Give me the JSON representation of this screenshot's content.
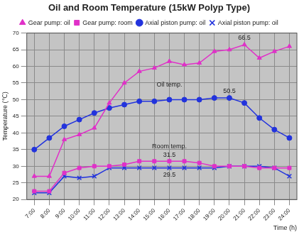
{
  "chart_data": {
    "type": "line",
    "title": "Oil and Room Temperature (15kW Polyp Type)",
    "xlabel": "Time (h)",
    "ylabel": "Temperature (℃)",
    "categories": [
      "7:00",
      "8:00",
      "9:00",
      "10:00",
      "11:00",
      "12:00",
      "13:00",
      "14:00",
      "15:00",
      "16:00",
      "17:00",
      "18:00",
      "19:00",
      "20:00",
      "21:00",
      "22:00",
      "23:00",
      "24:00"
    ],
    "series": [
      {
        "name": "Gear pump: oil",
        "color": "#e030c8",
        "marker": "triangle",
        "line_style": "solid",
        "values": [
          27,
          27,
          38,
          39.5,
          41.5,
          49,
          55,
          58.5,
          59.5,
          61.5,
          60.5,
          61,
          64.5,
          65,
          66.5,
          62.5,
          64.5,
          66
        ]
      },
      {
        "name": "Gear pump: room",
        "color": "#e030c8",
        "marker": "square",
        "line_style": "solid",
        "values": [
          22.5,
          22.5,
          28,
          29.5,
          30,
          30,
          30.5,
          31.5,
          31.5,
          31.5,
          31.5,
          31,
          30,
          30,
          30,
          29.5,
          29.5,
          29.5
        ]
      },
      {
        "name": "Axial piston pump: oil",
        "color": "#2233dd",
        "marker": "circle",
        "line_style": "solid",
        "values": [
          35,
          38.5,
          42,
          44,
          46,
          47.5,
          48.5,
          49.5,
          49.5,
          50,
          50,
          50,
          50.5,
          50.5,
          49,
          44.5,
          41,
          38.5
        ]
      },
      {
        "name": "Axial piston pump: oil",
        "color": "#2233dd",
        "marker": "x",
        "line_style": "solid",
        "values": [
          22,
          22,
          27,
          26.5,
          27,
          29.5,
          29.5,
          29.5,
          29.5,
          29.5,
          29.5,
          29.5,
          29.5,
          30,
          30,
          30,
          29.5,
          27
        ]
      }
    ],
    "annotations": [
      {
        "text": "Oil temp.",
        "x": "16:00",
        "y": 54.5
      },
      {
        "text": "Room temp.",
        "x": "16:00",
        "y": 36
      },
      {
        "text": "66.5",
        "x": "21:00",
        "y": 68.5
      },
      {
        "text": "50.5",
        "x": "20:00",
        "y": 52.5
      },
      {
        "text": "31.5",
        "x": "16:00",
        "y": 33.3
      },
      {
        "text": "29.5",
        "x": "16:00",
        "y": 27.3
      }
    ],
    "ylim": [
      20,
      70
    ],
    "yticks": [
      20,
      25,
      30,
      35,
      40,
      45,
      50,
      55,
      60,
      65,
      70
    ],
    "grid": true,
    "legend": "top"
  }
}
